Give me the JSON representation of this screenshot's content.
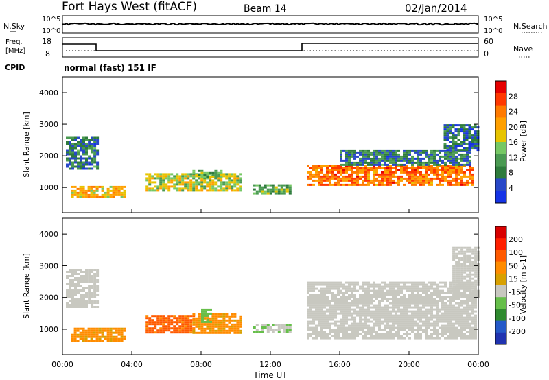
{
  "header": {
    "station": "Fort Hays West (fitACF)",
    "beam": "Beam 14",
    "date": "02/Jan/2014"
  },
  "noise_panel": {
    "left_label": "N.Sky",
    "left_ticks": [
      "10^5",
      "10^0"
    ],
    "right_label": "N.Search",
    "right_ticks": [
      "10^5",
      "10^0"
    ]
  },
  "freq_panel": {
    "left_label_line1": "Freq.",
    "left_label_line2": "[MHz]",
    "left_ticks": [
      "18",
      "8"
    ],
    "right_label": "Nave",
    "right_ticks": [
      "60",
      "0"
    ],
    "cpid_label": "CPID",
    "cpid_text": "normal (fast) 151 IF"
  },
  "colors": {
    "power_scale": [
      "#1533e6",
      "#2848c8",
      "#2e7b3c",
      "#4a9a52",
      "#76c864",
      "#e7c400",
      "#ffa000",
      "#ff7a00",
      "#ff3800",
      "#e60000"
    ],
    "velocity_scale": [
      "#2033b0",
      "#2459c8",
      "#2f8a2f",
      "#66bf4a",
      "#c8c8c0",
      "#d8a000",
      "#ff8c00",
      "#ff5a00",
      "#ff2000",
      "#d80000"
    ],
    "ground_scatter": "#c8c8c0"
  },
  "chart_data": [
    {
      "type": "heatmap",
      "panel": "power",
      "ylabel": "Slant Range [km]",
      "ylim": [
        200,
        4500
      ],
      "yticks": [
        "1000",
        "2000",
        "3000",
        "4000"
      ],
      "xlim": [
        0,
        24
      ],
      "colorbar_label": "Power [dB]",
      "colorbar_ticks": [
        "28",
        "24",
        "20",
        "16",
        "12",
        "8",
        "4"
      ],
      "colorbar_range": [
        0,
        32
      ],
      "bands": [
        {
          "t0": 0.5,
          "t1": 3.6,
          "r0": 680,
          "r1": 1050,
          "level": 20
        },
        {
          "t0": 0.2,
          "t1": 2.1,
          "r0": 1600,
          "r1": 2600,
          "level": 8
        },
        {
          "t0": 4.8,
          "t1": 10.3,
          "r0": 900,
          "r1": 1450,
          "level": 16
        },
        {
          "t0": 7.5,
          "t1": 9.2,
          "r0": 1300,
          "r1": 1550,
          "level": 12
        },
        {
          "t0": 11.0,
          "t1": 13.2,
          "r0": 800,
          "r1": 1100,
          "level": 12
        },
        {
          "t0": 14.1,
          "t1": 23.7,
          "r0": 1050,
          "r1": 1700,
          "level": 24
        },
        {
          "t0": 16.0,
          "t1": 23.5,
          "r0": 1700,
          "r1": 2200,
          "level": 8
        },
        {
          "t0": 22.0,
          "t1": 24.0,
          "r0": 2200,
          "r1": 3000,
          "level": 6
        }
      ]
    },
    {
      "type": "heatmap",
      "panel": "velocity",
      "ylabel": "Slant Range [km]",
      "ylim": [
        200,
        4500
      ],
      "yticks": [
        "1000",
        "2000",
        "3000",
        "4000"
      ],
      "xlim": [
        0,
        24
      ],
      "xlabel": "Time UT",
      "xticks": [
        "00:00",
        "04:00",
        "08:00",
        "12:00",
        "16:00",
        "20:00",
        "00:00"
      ],
      "colorbar_label": "Velocity [m s-1]",
      "colorbar_ticks": [
        "200",
        "100",
        "50",
        "15",
        "-15",
        "-50",
        "-100",
        "-200"
      ],
      "colorbar_range": [
        -250,
        250
      ],
      "bands": [
        {
          "t0": 0.5,
          "t1": 3.6,
          "r0": 600,
          "r1": 1050,
          "level": -60
        },
        {
          "t0": 0.2,
          "t1": 2.1,
          "r0": 1700,
          "r1": 2900,
          "level": 0
        },
        {
          "t0": 4.8,
          "t1": 7.5,
          "r0": 900,
          "r1": 1450,
          "level": -110
        },
        {
          "t0": 7.5,
          "t1": 10.3,
          "r0": 900,
          "r1": 1500,
          "level": -60
        },
        {
          "t0": 8.0,
          "t1": 8.6,
          "r0": 1200,
          "r1": 1650,
          "level": 80
        },
        {
          "t0": 11.0,
          "t1": 13.2,
          "r0": 900,
          "r1": 1150,
          "level": 40
        },
        {
          "t0": 14.1,
          "t1": 23.8,
          "r0": 700,
          "r1": 2500,
          "level": 0
        },
        {
          "t0": 22.5,
          "t1": 24.0,
          "r0": 2000,
          "r1": 3600,
          "level": 0
        }
      ]
    }
  ]
}
